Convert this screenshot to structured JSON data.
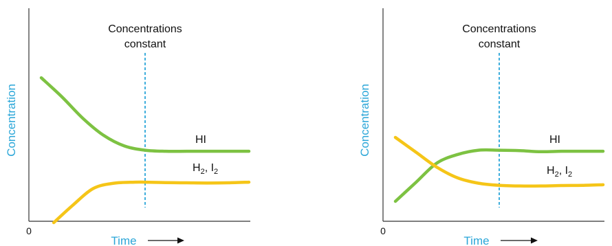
{
  "colors": {
    "hi": "#7dc242",
    "h2i2": "#f5c518",
    "marker": "#2aa6d8",
    "axis_label": "#2aa6d8",
    "axis": "#333333"
  },
  "chart_data": [
    {
      "type": "line",
      "xlabel": "Time",
      "ylabel": "Concentration",
      "x_tick": "0",
      "annotation": [
        "Concentrations",
        "constant"
      ],
      "marker_x": 5,
      "xlim": [
        0,
        10
      ],
      "ylim": [
        0,
        10
      ],
      "series": [
        {
          "name": "HI",
          "label_main": "HI",
          "label_sub": "",
          "label_rest": "",
          "color_key": "hi",
          "x": [
            0,
            1,
            2,
            3,
            4,
            5,
            6,
            7,
            8,
            9,
            10
          ],
          "y": [
            6.8,
            5.9,
            4.9,
            4.1,
            3.6,
            3.4,
            3.35,
            3.35,
            3.35,
            3.35,
            3.35
          ]
        },
        {
          "name": "H2, I2",
          "label_main": "H",
          "label_sub": "2",
          "label_rest": ", I",
          "label_sub2": "2",
          "color_key": "h2i2",
          "x": [
            0.6,
            1.5,
            2.5,
            3.5,
            4.5,
            5,
            6,
            7,
            8,
            9,
            10
          ],
          "y": [
            0,
            0.8,
            1.6,
            1.85,
            1.9,
            1.9,
            1.88,
            1.87,
            1.86,
            1.87,
            1.9
          ]
        }
      ]
    },
    {
      "type": "line",
      "xlabel": "Time",
      "ylabel": "Concentration",
      "x_tick": "0",
      "annotation": [
        "Concentrations",
        "constant"
      ],
      "marker_x": 5,
      "xlim": [
        0,
        10
      ],
      "ylim": [
        0,
        10
      ],
      "series": [
        {
          "name": "HI",
          "label_main": "HI",
          "label_sub": "",
          "label_rest": "",
          "color_key": "hi",
          "x": [
            0,
            1,
            2,
            3,
            4,
            5,
            6,
            7,
            8,
            9,
            10
          ],
          "y": [
            1.0,
            1.9,
            2.8,
            3.2,
            3.4,
            3.4,
            3.38,
            3.33,
            3.35,
            3.35,
            3.35
          ]
        },
        {
          "name": "H2, I2",
          "label_main": "H",
          "label_sub": "2",
          "label_rest": ", I",
          "label_sub2": "2",
          "color_key": "h2i2",
          "x": [
            0,
            1,
            2,
            3,
            4,
            5,
            6,
            7,
            8,
            9,
            10
          ],
          "y": [
            4.0,
            3.3,
            2.6,
            2.1,
            1.85,
            1.75,
            1.72,
            1.72,
            1.74,
            1.75,
            1.78
          ]
        }
      ]
    }
  ]
}
